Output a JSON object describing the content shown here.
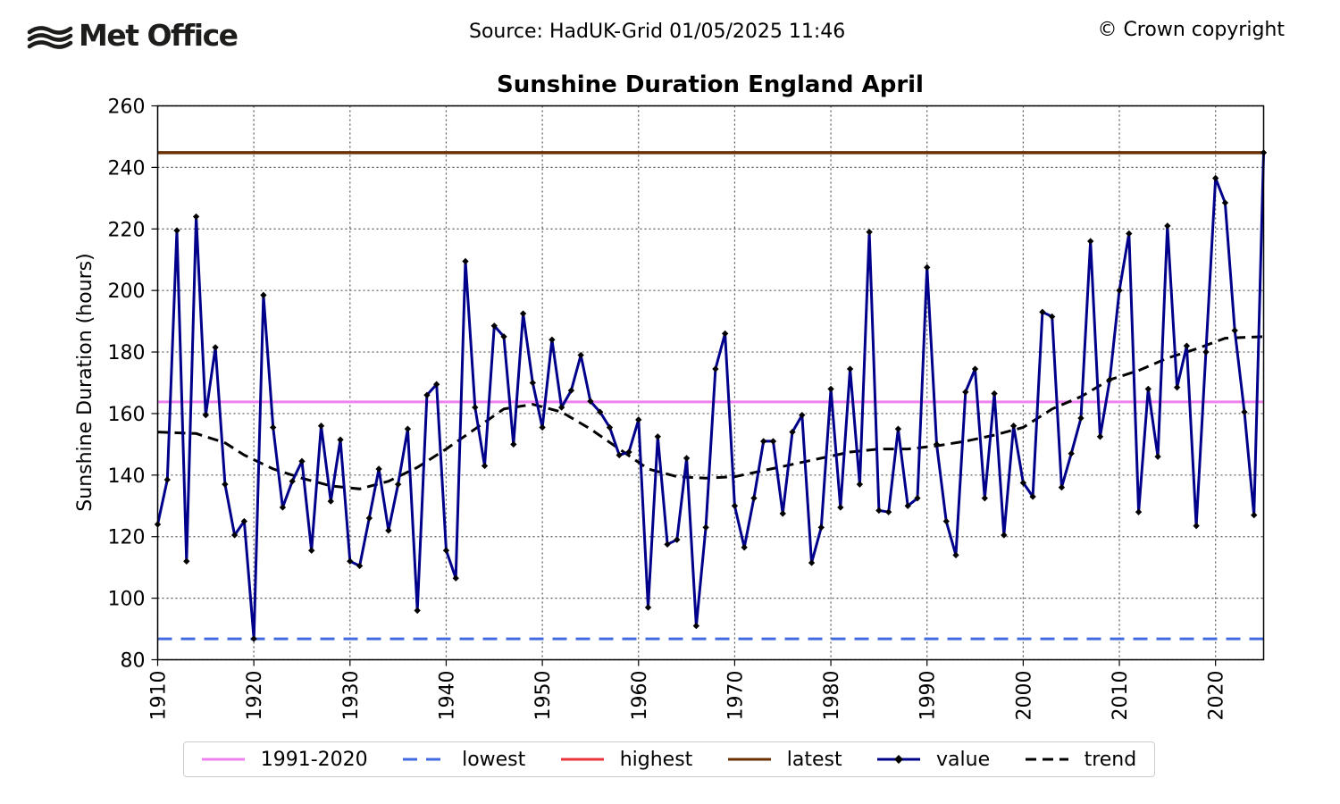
{
  "header": {
    "logo_text": "Met Office",
    "source": "Source: HadUK-Grid 01/05/2025 11:46",
    "copyright": "© Crown copyright"
  },
  "colors": {
    "baseline": "#ee82ee",
    "lowest": "#4169e1",
    "highest": "#e8343c",
    "latest": "#6b3000",
    "value": "#00008b",
    "trend": "#000000"
  },
  "chart_data": {
    "type": "line",
    "title": "Sunshine Duration England April",
    "ylabel": "Sunshine Duration (hours)",
    "xlabel": "",
    "xlim": [
      1910,
      2025
    ],
    "ylim": [
      80,
      260
    ],
    "xticks": [
      1910,
      1920,
      1930,
      1940,
      1950,
      1960,
      1970,
      1980,
      1990,
      2000,
      2010,
      2020
    ],
    "yticks": [
      80,
      100,
      120,
      140,
      160,
      180,
      200,
      220,
      240,
      260
    ],
    "grid": true,
    "legend_position": "bottom",
    "reference_lines": {
      "baseline_1991_2020": 163.8,
      "lowest": 86.8,
      "latest": 244.8
    },
    "series": [
      {
        "name": "value",
        "x": [
          1910,
          1911,
          1912,
          1913,
          1914,
          1915,
          1916,
          1917,
          1918,
          1919,
          1920,
          1921,
          1922,
          1923,
          1924,
          1925,
          1926,
          1927,
          1928,
          1929,
          1930,
          1931,
          1932,
          1933,
          1934,
          1935,
          1936,
          1937,
          1938,
          1939,
          1940,
          1941,
          1942,
          1943,
          1944,
          1945,
          1946,
          1947,
          1948,
          1949,
          1950,
          1951,
          1952,
          1953,
          1954,
          1955,
          1956,
          1957,
          1958,
          1959,
          1960,
          1961,
          1962,
          1963,
          1964,
          1965,
          1966,
          1967,
          1968,
          1969,
          1970,
          1971,
          1972,
          1973,
          1974,
          1975,
          1976,
          1977,
          1978,
          1979,
          1980,
          1981,
          1982,
          1983,
          1984,
          1985,
          1986,
          1987,
          1988,
          1989,
          1990,
          1991,
          1992,
          1993,
          1994,
          1995,
          1996,
          1997,
          1998,
          1999,
          2000,
          2001,
          2002,
          2003,
          2004,
          2005,
          2006,
          2007,
          2008,
          2009,
          2010,
          2011,
          2012,
          2013,
          2014,
          2015,
          2016,
          2017,
          2018,
          2019,
          2020,
          2021,
          2022,
          2023,
          2024,
          2025
        ],
        "values": [
          124,
          138.5,
          219.5,
          112,
          224,
          159.5,
          181.5,
          137,
          120.5,
          125,
          86.8,
          198.5,
          155.5,
          129.5,
          138,
          144.5,
          115.5,
          156,
          131.5,
          151.5,
          112,
          110.5,
          126,
          142,
          122,
          137,
          155,
          96,
          166,
          169.5,
          115.5,
          106.5,
          209.5,
          162,
          143,
          188.5,
          185,
          150,
          192.5,
          170,
          155.5,
          184,
          162,
          167.5,
          179,
          164,
          160.5,
          155.5,
          146.5,
          147.5,
          158,
          97,
          152.5,
          117.5,
          119,
          145.5,
          91,
          123,
          174.5,
          186,
          130,
          116.5,
          132.5,
          151,
          151,
          127.5,
          154,
          159.5,
          111.5,
          123,
          168,
          129.5,
          174.5,
          137,
          219,
          128.5,
          128,
          155,
          130,
          132.5,
          207.5,
          150,
          125,
          114,
          167,
          174.5,
          132.5,
          166.5,
          120.5,
          156,
          137.5,
          133,
          193,
          191.5,
          136,
          147,
          158.5,
          216,
          152.5,
          171,
          200,
          218.5,
          128,
          168,
          146,
          221,
          168.5,
          182,
          123.5,
          180,
          236.5,
          228.5,
          187,
          160.5,
          127,
          244.8
        ]
      },
      {
        "name": "trend",
        "x": [
          1910,
          1914,
          1917,
          1919,
          1922,
          1925,
          1928,
          1931,
          1934,
          1937,
          1940,
          1943,
          1946,
          1949,
          1952,
          1955,
          1958,
          1961,
          1964,
          1967,
          1970,
          1973,
          1976,
          1979,
          1982,
          1985,
          1988,
          1991,
          1994,
          1997,
          2000,
          2003,
          2006,
          2009,
          2012,
          2015,
          2018,
          2021,
          2025
        ],
        "values": [
          154,
          153.5,
          150.5,
          146.5,
          142,
          139,
          136.5,
          135.5,
          138,
          142.5,
          148.5,
          155,
          161.5,
          163,
          160.5,
          155,
          148.5,
          142,
          139.5,
          139,
          139.5,
          141.5,
          143.5,
          145.5,
          147.5,
          148.5,
          148.5,
          149.5,
          151,
          153,
          155.5,
          161.5,
          165.5,
          171,
          174,
          178,
          181,
          184.5,
          185
        ]
      }
    ],
    "legend": [
      "1991-2020",
      "lowest",
      "highest",
      "latest",
      "value",
      "trend"
    ]
  }
}
